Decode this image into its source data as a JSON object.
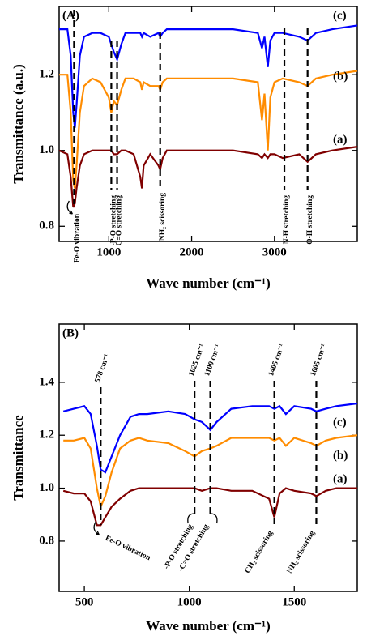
{
  "chart_data": [
    {
      "type": "line",
      "panel_label": "(A)",
      "xlabel": "Wave number (cm⁻¹)",
      "ylabel": "Transmittance (a.u.)",
      "xlim": [
        400,
        4000
      ],
      "ylim": [
        0.76,
        1.38
      ],
      "xticks": [
        1000,
        2000,
        3000
      ],
      "yticks": [
        0.8,
        {
          "value": 1.0,
          "label": "1.0"
        },
        1.2
      ],
      "x": [
        400,
        500,
        540,
        570,
        590,
        610,
        650,
        700,
        800,
        900,
        1000,
        1030,
        1060,
        1100,
        1150,
        1200,
        1300,
        1380,
        1400,
        1420,
        1500,
        1600,
        1620,
        1650,
        1700,
        2000,
        2500,
        2800,
        2850,
        2880,
        2920,
        2950,
        3000,
        3100,
        3300,
        3400,
        3500,
        3700,
        4000
      ],
      "series": [
        {
          "name": "(c)",
          "color": "#0000ff",
          "values": [
            1.32,
            1.32,
            1.25,
            1.1,
            1.06,
            1.12,
            1.25,
            1.3,
            1.31,
            1.31,
            1.3,
            1.28,
            1.26,
            1.24,
            1.28,
            1.31,
            1.31,
            1.31,
            1.3,
            1.31,
            1.3,
            1.31,
            1.3,
            1.31,
            1.32,
            1.32,
            1.32,
            1.31,
            1.27,
            1.3,
            1.22,
            1.29,
            1.31,
            1.31,
            1.3,
            1.29,
            1.31,
            1.32,
            1.33
          ]
        },
        {
          "name": "(b)",
          "color": "#ff8c00",
          "values": [
            1.2,
            1.2,
            1.1,
            0.92,
            0.9,
            0.96,
            1.1,
            1.17,
            1.19,
            1.18,
            1.14,
            1.1,
            1.13,
            1.12,
            1.16,
            1.19,
            1.19,
            1.18,
            1.16,
            1.18,
            1.17,
            1.17,
            1.16,
            1.18,
            1.19,
            1.19,
            1.19,
            1.18,
            1.08,
            1.15,
            1.0,
            1.14,
            1.18,
            1.19,
            1.18,
            1.17,
            1.19,
            1.2,
            1.21
          ]
        },
        {
          "name": "(a)",
          "color": "#800000",
          "values": [
            1.0,
            0.99,
            0.93,
            0.85,
            0.86,
            0.9,
            0.96,
            0.99,
            1.0,
            1.0,
            1.0,
            1.0,
            0.99,
            0.99,
            1.0,
            1.0,
            0.99,
            0.93,
            0.9,
            0.96,
            0.99,
            0.96,
            0.95,
            0.98,
            1.0,
            1.0,
            1.0,
            0.99,
            0.98,
            0.99,
            0.98,
            0.99,
            0.99,
            0.98,
            0.99,
            0.97,
            0.99,
            1.0,
            1.01
          ]
        }
      ],
      "annotations": [
        {
          "x": 580,
          "assignment": "Fe-O vibration"
        },
        {
          "x": 1030,
          "assignment": "-P-O stretching"
        },
        {
          "x": 1100,
          "assignment": "C=O stretching"
        },
        {
          "x": 1620,
          "assignment": "NH₂ scissoring"
        },
        {
          "x": 3120,
          "assignment": "N-H stretching"
        },
        {
          "x": 3400,
          "assignment": "O-H stretching"
        }
      ]
    },
    {
      "type": "line",
      "panel_label": "(B)",
      "xlabel": "Wave number (cm⁻¹)",
      "ylabel": "Transmittance",
      "xlim": [
        380,
        1800
      ],
      "ylim": [
        0.61,
        1.62
      ],
      "xticks": [
        500,
        1000,
        1500
      ],
      "yticks": [
        0.8,
        {
          "value": 1.0,
          "label": "1.0"
        },
        1.2,
        1.4
      ],
      "x": [
        400,
        450,
        500,
        530,
        560,
        578,
        600,
        630,
        670,
        720,
        760,
        800,
        900,
        980,
        1025,
        1060,
        1100,
        1130,
        1200,
        1300,
        1380,
        1405,
        1430,
        1460,
        1500,
        1580,
        1605,
        1650,
        1700,
        1800
      ],
      "series": [
        {
          "name": "(c)",
          "color": "#0000ff",
          "values": [
            1.29,
            1.3,
            1.31,
            1.28,
            1.16,
            1.07,
            1.06,
            1.12,
            1.2,
            1.27,
            1.28,
            1.28,
            1.29,
            1.28,
            1.26,
            1.25,
            1.22,
            1.25,
            1.3,
            1.31,
            1.31,
            1.3,
            1.31,
            1.28,
            1.31,
            1.3,
            1.29,
            1.3,
            1.31,
            1.32
          ]
        },
        {
          "name": "(b)",
          "color": "#ff8c00",
          "values": [
            1.18,
            1.18,
            1.19,
            1.15,
            1.0,
            0.93,
            0.97,
            1.06,
            1.15,
            1.18,
            1.19,
            1.18,
            1.17,
            1.14,
            1.12,
            1.14,
            1.15,
            1.16,
            1.19,
            1.19,
            1.19,
            1.18,
            1.19,
            1.16,
            1.19,
            1.17,
            1.16,
            1.18,
            1.19,
            1.2
          ]
        },
        {
          "name": "(a)",
          "color": "#800000",
          "values": [
            0.99,
            0.98,
            0.98,
            0.95,
            0.86,
            0.86,
            0.89,
            0.93,
            0.96,
            0.99,
            1.0,
            1.0,
            1.0,
            1.0,
            1.0,
            0.99,
            1.0,
            1.0,
            0.99,
            0.99,
            0.96,
            0.89,
            0.98,
            1.0,
            0.99,
            0.98,
            0.97,
            0.99,
            1.0,
            1.0
          ]
        }
      ],
      "annotations": [
        {
          "x": 578,
          "peak_label": "578 cm⁻¹",
          "assignment": "Fe-O vibration"
        },
        {
          "x": 1025,
          "peak_label": "1025 cm⁻¹",
          "assignment": "-P-O stretching"
        },
        {
          "x": 1100,
          "peak_label": "1100 cm⁻¹",
          "assignment": "-C=O stretching"
        },
        {
          "x": 1405,
          "peak_label": "1405 cm⁻¹",
          "assignment": "CH₂ scissoring"
        },
        {
          "x": 1605,
          "peak_label": "1605 cm⁻¹",
          "assignment": "NH₂ scissoring"
        }
      ]
    }
  ]
}
